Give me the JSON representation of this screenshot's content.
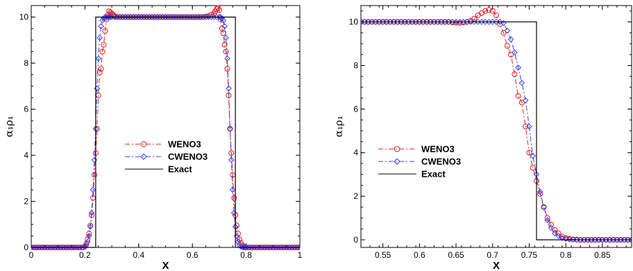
{
  "chart_data": [
    {
      "type": "line",
      "xlabel": "X",
      "ylabel": "α₁ρ₁",
      "xlim": [
        0,
        1
      ],
      "ylim": [
        0,
        10.5
      ],
      "x_ticks": [
        0,
        0.2,
        0.4,
        0.6,
        0.8,
        1
      ],
      "x_tick_labels": [
        "0",
        "0.2",
        "0.4",
        "0.6",
        "0.8",
        "1"
      ],
      "y_ticks": [
        0,
        2,
        4,
        6,
        8,
        10
      ],
      "y_tick_labels": [
        "0",
        "2",
        "4",
        "6",
        "8",
        "10"
      ],
      "grid": false,
      "legend_position": "center",
      "series": [
        {
          "name": "WENO3",
          "color": "#e41a1c",
          "marker": "circle",
          "x": [
            0,
            0.01,
            0.02,
            0.03,
            0.04,
            0.05,
            0.06,
            0.07,
            0.08,
            0.09,
            0.1,
            0.11,
            0.12,
            0.13,
            0.14,
            0.15,
            0.16,
            0.17,
            0.18,
            0.19,
            0.2,
            0.205,
            0.21,
            0.215,
            0.22,
            0.225,
            0.23,
            0.235,
            0.24,
            0.245,
            0.25,
            0.255,
            0.26,
            0.265,
            0.27,
            0.275,
            0.28,
            0.285,
            0.29,
            0.295,
            0.3,
            0.305,
            0.31,
            0.315,
            0.32,
            0.33,
            0.34,
            0.35,
            0.36,
            0.37,
            0.38,
            0.39,
            0.4,
            0.41,
            0.42,
            0.43,
            0.44,
            0.45,
            0.46,
            0.47,
            0.48,
            0.49,
            0.5,
            0.51,
            0.52,
            0.53,
            0.54,
            0.55,
            0.56,
            0.57,
            0.58,
            0.59,
            0.6,
            0.61,
            0.62,
            0.63,
            0.64,
            0.65,
            0.66,
            0.67,
            0.68,
            0.685,
            0.69,
            0.695,
            0.7,
            0.705,
            0.71,
            0.715,
            0.72,
            0.725,
            0.73,
            0.735,
            0.74,
            0.745,
            0.75,
            0.755,
            0.76,
            0.765,
            0.77,
            0.775,
            0.78,
            0.785,
            0.79,
            0.795,
            0.8,
            0.81,
            0.82,
            0.83,
            0.84,
            0.85,
            0.86,
            0.87,
            0.88,
            0.89,
            0.9,
            0.91,
            0.92,
            0.93,
            0.94,
            0.95,
            0.96,
            0.97,
            0.98,
            0.99,
            1
          ],
          "y": [
            0,
            0,
            0,
            0,
            0,
            0,
            0,
            0,
            0,
            0,
            0,
            0,
            0,
            0,
            0,
            0,
            0,
            0,
            0,
            0,
            0.05,
            0.15,
            0.35,
            0.6,
            0.95,
            1.4,
            2.15,
            3.15,
            4.1,
            5.15,
            6.6,
            7.6,
            7.75,
            8.5,
            8.8,
            9.4,
            9.9,
            10.1,
            10.25,
            10.2,
            10.15,
            10.1,
            10.05,
            10.02,
            10,
            10,
            10,
            10,
            10,
            10,
            10,
            10,
            10,
            10,
            10,
            10,
            10,
            10,
            10,
            10,
            10,
            10,
            10,
            10,
            10,
            10,
            10,
            10,
            10,
            10,
            10,
            10,
            10,
            10,
            10,
            10,
            10,
            10.02,
            10.05,
            10.1,
            10.15,
            10.25,
            10.35,
            10.4,
            10.3,
            9.9,
            9.5,
            9.3,
            8.8,
            8.5,
            7.75,
            6.6,
            5.15,
            4.1,
            3.15,
            2.15,
            1.4,
            0.95,
            0.6,
            0.35,
            0.2,
            0.1,
            0.05,
            0.02,
            0,
            0,
            0,
            0,
            0,
            0,
            0,
            0,
            0,
            0,
            0,
            0,
            0,
            0,
            0,
            0,
            0,
            0,
            0,
            0,
            0
          ]
        },
        {
          "name": "CWENO3",
          "color": "#3a3ae8",
          "marker": "diamond",
          "x": [
            0,
            0.01,
            0.02,
            0.03,
            0.04,
            0.05,
            0.06,
            0.07,
            0.08,
            0.09,
            0.1,
            0.11,
            0.12,
            0.13,
            0.14,
            0.15,
            0.16,
            0.17,
            0.18,
            0.19,
            0.2,
            0.205,
            0.21,
            0.215,
            0.22,
            0.225,
            0.23,
            0.235,
            0.24,
            0.245,
            0.25,
            0.255,
            0.26,
            0.265,
            0.27,
            0.275,
            0.28,
            0.285,
            0.29,
            0.295,
            0.3,
            0.31,
            0.32,
            0.33,
            0.34,
            0.35,
            0.36,
            0.37,
            0.38,
            0.39,
            0.4,
            0.41,
            0.42,
            0.43,
            0.44,
            0.45,
            0.46,
            0.47,
            0.48,
            0.49,
            0.5,
            0.51,
            0.52,
            0.53,
            0.54,
            0.55,
            0.56,
            0.57,
            0.58,
            0.59,
            0.6,
            0.61,
            0.62,
            0.63,
            0.64,
            0.65,
            0.66,
            0.67,
            0.68,
            0.69,
            0.7,
            0.705,
            0.71,
            0.715,
            0.72,
            0.725,
            0.73,
            0.735,
            0.74,
            0.745,
            0.75,
            0.755,
            0.76,
            0.765,
            0.77,
            0.775,
            0.78,
            0.785,
            0.79,
            0.795,
            0.8,
            0.81,
            0.82,
            0.83,
            0.84,
            0.85,
            0.86,
            0.87,
            0.88,
            0.89,
            0.9,
            0.91,
            0.92,
            0.93,
            0.94,
            0.95,
            0.96,
            0.97,
            0.98,
            0.99,
            1
          ],
          "y": [
            0,
            0,
            0,
            0,
            0,
            0,
            0,
            0,
            0,
            0,
            0,
            0,
            0,
            0,
            0,
            0,
            0,
            0,
            0,
            0,
            0.02,
            0.1,
            0.25,
            0.5,
            0.9,
            1.5,
            2.5,
            3.8,
            5.15,
            6.9,
            8.2,
            9.1,
            9.6,
            9.85,
            9.95,
            10,
            10,
            10,
            10,
            10,
            10,
            10,
            10,
            10,
            10,
            10,
            10,
            10,
            10,
            10,
            10,
            10,
            10,
            10,
            10,
            10,
            10,
            10,
            10,
            10,
            10,
            10,
            10,
            10,
            10,
            10,
            10,
            10,
            10,
            10,
            10,
            10,
            10,
            10,
            10,
            10,
            10,
            10,
            10,
            10,
            10,
            10,
            9.95,
            9.85,
            9.6,
            9.1,
            8.2,
            6.9,
            5.15,
            3.8,
            2.5,
            1.5,
            0.9,
            0.5,
            0.25,
            0.1,
            0.04,
            0.02,
            0,
            0,
            0,
            0,
            0,
            0,
            0,
            0,
            0,
            0,
            0,
            0,
            0,
            0,
            0,
            0,
            0,
            0,
            0,
            0,
            0,
            0,
            0
          ]
        },
        {
          "name": "Exact",
          "color": "#000000",
          "marker": "none",
          "x": [
            0,
            0.24,
            0.24,
            0.76,
            0.76,
            1
          ],
          "y": [
            0,
            0,
            10,
            10,
            0,
            0
          ]
        }
      ]
    },
    {
      "type": "line",
      "xlabel": "X",
      "ylabel": "α₁ρ₁",
      "xlim": [
        0.52,
        0.89
      ],
      "ylim": [
        -0.35,
        10.75
      ],
      "x_ticks": [
        0.55,
        0.6,
        0.65,
        0.7,
        0.75,
        0.8,
        0.85
      ],
      "x_tick_labels": [
        "0.55",
        "0.6",
        "0.65",
        "0.7",
        "0.75",
        "0.8",
        "0.85"
      ],
      "y_ticks": [
        0,
        2,
        4,
        6,
        8,
        10
      ],
      "y_tick_labels": [
        "0",
        "2",
        "4",
        "6",
        "8",
        "10"
      ],
      "grid": false,
      "legend_position": "bottom-left",
      "series": [
        {
          "name": "WENO3",
          "color": "#e41a1c",
          "marker": "circle",
          "x": [
            0.52,
            0.525,
            0.53,
            0.535,
            0.54,
            0.545,
            0.55,
            0.555,
            0.56,
            0.565,
            0.57,
            0.575,
            0.58,
            0.585,
            0.59,
            0.595,
            0.6,
            0.605,
            0.61,
            0.615,
            0.62,
            0.625,
            0.63,
            0.635,
            0.64,
            0.645,
            0.65,
            0.655,
            0.66,
            0.665,
            0.67,
            0.675,
            0.68,
            0.685,
            0.69,
            0.695,
            0.7,
            0.705,
            0.71,
            0.715,
            0.72,
            0.725,
            0.73,
            0.735,
            0.74,
            0.745,
            0.75,
            0.755,
            0.76,
            0.765,
            0.77,
            0.775,
            0.78,
            0.785,
            0.79,
            0.795,
            0.8,
            0.805,
            0.81,
            0.815,
            0.82,
            0.825,
            0.83,
            0.835,
            0.84,
            0.845,
            0.85,
            0.855,
            0.86,
            0.865,
            0.87,
            0.875,
            0.88,
            0.885,
            0.89
          ],
          "y": [
            10,
            10,
            10,
            10,
            10,
            10,
            10,
            10,
            10,
            10,
            10,
            10,
            10,
            10,
            10,
            10,
            10,
            10,
            10,
            10,
            10,
            10,
            10,
            10,
            10,
            9.98,
            9.96,
            9.95,
            9.97,
            10,
            10.05,
            10.15,
            10.3,
            10.4,
            10.5,
            10.55,
            10.5,
            10.3,
            9.9,
            9.5,
            8.9,
            8.5,
            7.6,
            6.6,
            6.3,
            5.2,
            4.0,
            3.3,
            2.7,
            2.1,
            1.5,
            1.0,
            0.7,
            0.45,
            0.3,
            0.15,
            0.08,
            0.05,
            0.02,
            0.01,
            0,
            0,
            0,
            0,
            0,
            0,
            0,
            0,
            0,
            0,
            0,
            0,
            0,
            0,
            0
          ]
        },
        {
          "name": "CWENO3",
          "color": "#3a3ae8",
          "marker": "diamond",
          "x": [
            0.52,
            0.525,
            0.53,
            0.535,
            0.54,
            0.545,
            0.55,
            0.555,
            0.56,
            0.565,
            0.57,
            0.575,
            0.58,
            0.585,
            0.59,
            0.595,
            0.6,
            0.605,
            0.61,
            0.615,
            0.62,
            0.625,
            0.63,
            0.635,
            0.64,
            0.645,
            0.65,
            0.655,
            0.66,
            0.665,
            0.67,
            0.675,
            0.68,
            0.685,
            0.69,
            0.695,
            0.7,
            0.705,
            0.71,
            0.715,
            0.72,
            0.725,
            0.73,
            0.735,
            0.74,
            0.745,
            0.75,
            0.755,
            0.76,
            0.765,
            0.77,
            0.775,
            0.78,
            0.785,
            0.79,
            0.795,
            0.8,
            0.805,
            0.81,
            0.815,
            0.82,
            0.825,
            0.83,
            0.835,
            0.84,
            0.845,
            0.85,
            0.855,
            0.86,
            0.865,
            0.87,
            0.875,
            0.88,
            0.885,
            0.89
          ],
          "y": [
            10,
            10,
            10,
            10,
            10,
            10,
            10,
            10,
            10,
            10,
            10,
            10,
            10,
            10,
            10,
            10,
            10,
            10,
            10,
            10,
            10,
            10,
            10,
            10,
            10,
            10,
            10,
            10,
            10,
            10,
            10,
            10,
            10,
            10,
            10,
            10,
            10,
            10,
            10,
            9.95,
            9.6,
            9.2,
            8.6,
            7.9,
            7.2,
            6.4,
            5.2,
            3.85,
            3.0,
            2.2,
            1.5,
            0.9,
            0.55,
            0.3,
            0.18,
            0.08,
            0.04,
            0.02,
            0.01,
            0,
            0,
            0,
            0,
            0,
            0,
            0,
            0,
            0,
            0,
            0,
            0,
            0,
            0,
            0,
            0
          ]
        },
        {
          "name": "Exact",
          "color": "#000000",
          "marker": "none",
          "x": [
            0.52,
            0.74,
            0.76,
            0.76,
            0.89
          ],
          "y": [
            10,
            10,
            10,
            0,
            0
          ]
        }
      ]
    }
  ]
}
